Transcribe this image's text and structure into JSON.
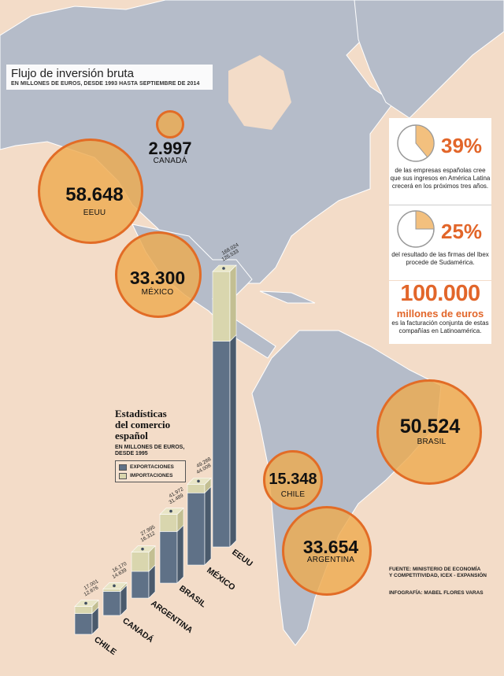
{
  "title": "Flujo de inversión bruta",
  "subtitle": "EN MILLONES DE EUROS, DESDE 1993 HASTA SEPTIEMBRE DE 2014",
  "colors": {
    "bubble_fill": "#eeaa4e",
    "bubble_stroke": "#e26c26",
    "accent": "#e2662a",
    "exports": "#5f7187",
    "imports": "#d9d6ae",
    "land": "#b5bcc9",
    "sea": "#f3dcc8"
  },
  "investment": [
    {
      "country": "CANADÁ",
      "value": "2.997"
    },
    {
      "country": "EEUU",
      "value": "58.648"
    },
    {
      "country": "MÉXICO",
      "value": "33.300"
    },
    {
      "country": "BRASIL",
      "value": "50.524"
    },
    {
      "country": "CHILE",
      "value": "15.348"
    },
    {
      "country": "ARGENTINA",
      "value": "33.654"
    }
  ],
  "stats": [
    {
      "percent": "39%",
      "fraction": 0.39,
      "text": "de las empresas españolas cree que sus ingresos en América Latina crecerá en los próximos tres años."
    },
    {
      "percent": "25%",
      "fraction": 0.25,
      "text": "del resultado de las firmas del Ibex procede de Sudamérica."
    }
  ],
  "big_stat": {
    "number": "100.000",
    "unit": "millones de euros",
    "text": "es la facturación conjunta de estas compañías en Latinoamérica."
  },
  "trade": {
    "title_lines": [
      "Estadísticas",
      "del comercio",
      "español"
    ],
    "subtitle": "EN MILLONES DE EUROS, DESDE 1995",
    "legend": [
      "EXPORTACIONES",
      "IMPORTACIONES"
    ]
  },
  "chart_data": {
    "type": "bar",
    "title": "Estadísticas del comercio español",
    "subtitle": "EN MILLONES DE EUROS, DESDE 1995",
    "categories": [
      "CHILE",
      "CANADÁ",
      "ARGENTINA",
      "BRASIL",
      "MÉXICO",
      "EEUU"
    ],
    "series": [
      {
        "name": "EXPORTACIONES",
        "values": [
          12676,
          14639,
          16312,
          31489,
          44008,
          125533
        ],
        "labels": [
          "12.676",
          "14.639",
          "16.312",
          "31.489",
          "44.008",
          "125.533"
        ]
      },
      {
        "name": "IMPORTACIONES",
        "values": [
          17001,
          16170,
          27995,
          41972,
          49268,
          168024
        ],
        "labels": [
          "17.001",
          "16.170",
          "27.995",
          "41.972",
          "49.268",
          "168.024"
        ]
      }
    ]
  },
  "source": [
    "FUENTE: MINISTERIO DE ECONOMÍA",
    "Y COMPETITIVIDAD, ICEX - EXPANSIÓN"
  ],
  "credit": "INFOGRAFÍA: MABEL FLORES VARAS"
}
